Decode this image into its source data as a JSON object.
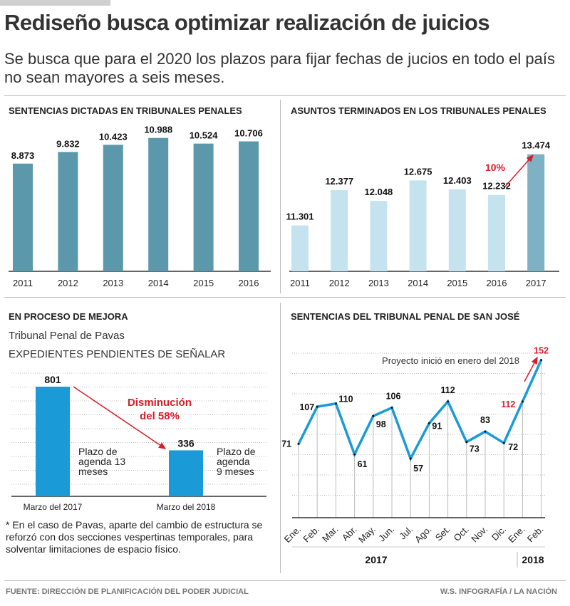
{
  "header": {
    "title": "Rediseño busca optimizar realización de juicios",
    "subtitle": "Se busca que para el 2020 los plazos para fijar fechas de jucios en todo el país no sean mayores a seis meses."
  },
  "colors": {
    "dark_teal": "#5b98ab",
    "light_blue": "#c5e3ee",
    "mid_teal": "#7eb1c4",
    "bright_blue": "#1a9ad6",
    "red": "#d71f2b"
  },
  "chart_data": [
    {
      "type": "bar",
      "title": "SENTENCIAS DICTADAS EN TRIBUNALES PENALES",
      "categories": [
        "2011",
        "2012",
        "2013",
        "2014",
        "2015",
        "2016"
      ],
      "values": [
        8.873,
        9.832,
        10.423,
        10.988,
        10.524,
        10.706
      ],
      "labels": [
        "8.873",
        "9.832",
        "10.423",
        "10.988",
        "10.524",
        "10.706"
      ],
      "ylim": [
        0,
        11.5
      ]
    },
    {
      "type": "bar",
      "title": "ASUNTOS TERMINADOS EN LOS TRIBUNALES PENALES",
      "categories": [
        "2011",
        "2012",
        "2013",
        "2014",
        "2015",
        "2016",
        "2017"
      ],
      "values": [
        11.301,
        12.377,
        12.048,
        12.675,
        12.403,
        12.232,
        13.474
      ],
      "labels": [
        "11.301",
        "12.377",
        "12.048",
        "12.675",
        "12.403",
        "12.232",
        "13.474"
      ],
      "ylim": [
        9.9,
        14.2
      ],
      "annotation": "10%"
    },
    {
      "type": "bar",
      "title": "EN PROCESO DE MEJORA",
      "subtitle": "Tribunal Penal de Pavas",
      "ylabel": "EXPEDIENTES PENDIENTES DE SEÑALAR",
      "categories": [
        "Marzo del 2017",
        "Marzo del 2018"
      ],
      "values": [
        801,
        336
      ],
      "labels": [
        "801",
        "336"
      ],
      "notes": [
        "Plazo de agenda 13 meses",
        "Plazo de agenda 9 meses"
      ],
      "annotation": [
        "Disminución",
        "del 58%"
      ],
      "ylim": [
        0,
        900
      ]
    },
    {
      "type": "line",
      "title": "SENTENCIAS DEL TRIBUNAL PENAL DE SAN JOSÉ",
      "categories": [
        "Ene.",
        "Feb.",
        "Mar.",
        "Abr.",
        "May.",
        "Jun.",
        "Jul.",
        "Ago.",
        "Set.",
        "Oct.",
        "Nov.",
        "Dic.",
        "Ene.",
        "Feb."
      ],
      "years": [
        "2017",
        "2018"
      ],
      "values": [
        71,
        107,
        110,
        61,
        98,
        106,
        57,
        91,
        112,
        73,
        83,
        72,
        112,
        152
      ],
      "labels": [
        "71",
        "107",
        "110",
        "61",
        "98",
        "106",
        "57",
        "91",
        "112",
        "73",
        "83",
        "72",
        "112",
        "152"
      ],
      "annotation": "Proyecto inició en enero del 2018",
      "ylim": [
        0,
        165
      ]
    }
  ],
  "note": "* En el caso de Pavas, aparte del cambio de estructura se reforzó con dos secciones vespertinas temporales, para solventar limitaciones de espacio físico.",
  "footer": {
    "source": "FUENTE: DIRECCIÓN DE PLANIFICACIÓN DEL PODER JUDICIAL",
    "credit": "W.S. INFOGRAFÍA / LA NACIÓN"
  }
}
